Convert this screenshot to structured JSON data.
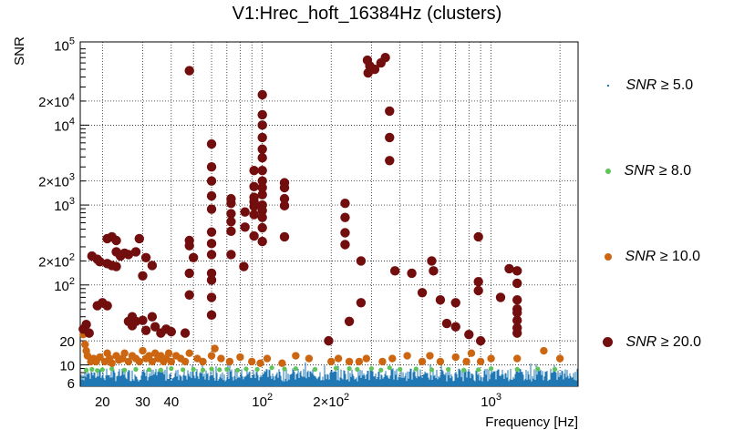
{
  "chart_data": {
    "type": "scatter",
    "title": "V1:Hrec_hoft_16384Hz (clusters)",
    "xlabel": "Frequency [Hz]",
    "ylabel": "SNR",
    "xscale": "log",
    "yscale": "log",
    "xlim": [
      16,
      2400
    ],
    "ylim": [
      5.4,
      110000
    ],
    "grid": true,
    "x_ticks": [
      {
        "value": 20,
        "label": "20"
      },
      {
        "value": 30,
        "label": "30"
      },
      {
        "value": 40,
        "label": "40"
      },
      {
        "value": 100,
        "label": "10²"
      },
      {
        "value": 200,
        "label": "2×10²"
      },
      {
        "value": 1000,
        "label": "10³"
      }
    ],
    "y_ticks": [
      {
        "value": 6,
        "label": "6"
      },
      {
        "value": 10,
        "label": "10"
      },
      {
        "value": 20,
        "label": "20"
      },
      {
        "value": 100,
        "label": "10²"
      },
      {
        "value": 200,
        "label": "2×10²"
      },
      {
        "value": 1000,
        "label": "10³"
      },
      {
        "value": 2000,
        "label": "2×10³"
      },
      {
        "value": 10000,
        "label": "10⁴"
      },
      {
        "value": 20000,
        "label": "2×10⁴"
      },
      {
        "value": 100000,
        "label": "10⁵"
      }
    ],
    "legend_position": "right",
    "series": [
      {
        "name": "SNR ≥ 5.0",
        "label": "SNR",
        "threshold": "≥ 5.0",
        "color": "#1f77b4",
        "marker": "point",
        "note": "dense band of low-SNR clusters across all frequencies (5–10)",
        "points": []
      },
      {
        "name": "SNR ≥ 8.0",
        "label": "SNR",
        "threshold": "≥ 8.0",
        "color": "#5ec45a",
        "marker": "small-circle",
        "points": [
          [
            17,
            8.6
          ],
          [
            18,
            8.8
          ],
          [
            19,
            8.5
          ],
          [
            20,
            8.7
          ],
          [
            22,
            8.9
          ],
          [
            25,
            8.6
          ],
          [
            28,
            8.8
          ],
          [
            32,
            8.7
          ],
          [
            36,
            8.6
          ],
          [
            40,
            9.0
          ],
          [
            45,
            8.7
          ],
          [
            50,
            8.8
          ],
          [
            55,
            8.6
          ],
          [
            60,
            8.9
          ],
          [
            65,
            8.7
          ],
          [
            70,
            8.8
          ],
          [
            78,
            8.6
          ],
          [
            85,
            8.9
          ],
          [
            95,
            8.8
          ],
          [
            110,
            9.2
          ],
          [
            125,
            8.9
          ],
          [
            140,
            9.0
          ],
          [
            170,
            8.8
          ],
          [
            210,
            9.1
          ],
          [
            240,
            9.0
          ],
          [
            260,
            8.8
          ],
          [
            300,
            9.0
          ],
          [
            330,
            8.6
          ],
          [
            360,
            9.2
          ],
          [
            400,
            8.8
          ],
          [
            470,
            8.9
          ],
          [
            550,
            8.7
          ],
          [
            650,
            8.8
          ],
          [
            760,
            8.6
          ],
          [
            880,
            8.7
          ],
          [
            1000,
            9.0
          ],
          [
            1300,
            8.8
          ],
          [
            1600,
            8.9
          ],
          [
            1900,
            8.8
          ]
        ]
      },
      {
        "name": "SNR ≥ 10.0",
        "label": "SNR",
        "threshold": "≥ 10.0",
        "color": "#cc6610",
        "marker": "circle",
        "points": [
          [
            16.5,
            24
          ],
          [
            16.8,
            18
          ],
          [
            17,
            15
          ],
          [
            17.2,
            13
          ],
          [
            17.8,
            11
          ],
          [
            18.3,
            12
          ],
          [
            18.8,
            11
          ],
          [
            19.5,
            12.5
          ],
          [
            20.5,
            11
          ],
          [
            21,
            14
          ],
          [
            21.5,
            12
          ],
          [
            22,
            10.5
          ],
          [
            23,
            13
          ],
          [
            23.6,
            11.5
          ],
          [
            24.5,
            12
          ],
          [
            25,
            14
          ],
          [
            26,
            11
          ],
          [
            27,
            13
          ],
          [
            28,
            12
          ],
          [
            29,
            11
          ],
          [
            30,
            15
          ],
          [
            31,
            12
          ],
          [
            32,
            13
          ],
          [
            33,
            11
          ],
          [
            34,
            14
          ],
          [
            35,
            12
          ],
          [
            36,
            13
          ],
          [
            37,
            11
          ],
          [
            38,
            12
          ],
          [
            39,
            14
          ],
          [
            40,
            11
          ],
          [
            42,
            13
          ],
          [
            44,
            12
          ],
          [
            46,
            11
          ],
          [
            48,
            14
          ],
          [
            52,
            12
          ],
          [
            55,
            11
          ],
          [
            60,
            13
          ],
          [
            62,
            16
          ],
          [
            66,
            12
          ],
          [
            72,
            11
          ],
          [
            80,
            12.5
          ],
          [
            90,
            11
          ],
          [
            98,
            10.5
          ],
          [
            105,
            12
          ],
          [
            122,
            10.5
          ],
          [
            140,
            13
          ],
          [
            160,
            12
          ],
          [
            200,
            11
          ],
          [
            215,
            12
          ],
          [
            240,
            11
          ],
          [
            265,
            11
          ],
          [
            285,
            12
          ],
          [
            335,
            11
          ],
          [
            370,
            12
          ],
          [
            430,
            13
          ],
          [
            500,
            11
          ],
          [
            540,
            13
          ],
          [
            600,
            11
          ],
          [
            700,
            12.5
          ],
          [
            780,
            11
          ],
          [
            820,
            14
          ],
          [
            900,
            11
          ],
          [
            1000,
            12
          ],
          [
            1300,
            12
          ],
          [
            1700,
            15
          ],
          [
            2000,
            12
          ]
        ]
      },
      {
        "name": "SNR ≥ 20.0",
        "label": "SNR",
        "threshold": "≥ 20.0",
        "color": "#720e0e",
        "marker": "large-circle",
        "points": [
          [
            16.5,
            28
          ],
          [
            17,
            32
          ],
          [
            17.5,
            25
          ],
          [
            18,
            230
          ],
          [
            19,
            210
          ],
          [
            19.5,
            195
          ],
          [
            19,
            55
          ],
          [
            20,
            60
          ],
          [
            21,
            55
          ],
          [
            21,
            185
          ],
          [
            22,
            175
          ],
          [
            23,
            260
          ],
          [
            23,
            170
          ],
          [
            25,
            250
          ],
          [
            21,
            380
          ],
          [
            22,
            400
          ],
          [
            23,
            360
          ],
          [
            24,
            230
          ],
          [
            26,
            240
          ],
          [
            28,
            260
          ],
          [
            27,
            40
          ],
          [
            27,
            31
          ],
          [
            26,
            35
          ],
          [
            28,
            35
          ],
          [
            30,
            36
          ],
          [
            31,
            27
          ],
          [
            33,
            40
          ],
          [
            34,
            30
          ],
          [
            36,
            25
          ],
          [
            38,
            28
          ],
          [
            29,
            380
          ],
          [
            31,
            220
          ],
          [
            30,
            130
          ],
          [
            33,
            175
          ],
          [
            40,
            26
          ],
          [
            48,
            48000
          ],
          [
            48,
            310
          ],
          [
            48,
            360
          ],
          [
            48,
            75
          ],
          [
            48,
            140
          ],
          [
            46,
            25
          ],
          [
            50,
            220
          ],
          [
            60,
            5800
          ],
          [
            60,
            3000
          ],
          [
            60,
            2000
          ],
          [
            60,
            1300
          ],
          [
            60,
            890
          ],
          [
            60,
            460
          ],
          [
            60,
            330
          ],
          [
            60,
            240
          ],
          [
            60,
            140
          ],
          [
            60,
            115
          ],
          [
            60,
            70
          ],
          [
            60,
            42
          ],
          [
            73,
            1200
          ],
          [
            73,
            1050
          ],
          [
            73,
            780
          ],
          [
            73,
            620
          ],
          [
            73,
            470
          ],
          [
            73,
            240
          ],
          [
            84,
            820
          ],
          [
            84,
            530
          ],
          [
            83,
            170
          ],
          [
            92,
            2700
          ],
          [
            92,
            1700
          ],
          [
            92,
            1250
          ],
          [
            92,
            1100
          ],
          [
            92,
            960
          ],
          [
            92,
            760
          ],
          [
            92,
            410
          ],
          [
            100,
            24000
          ],
          [
            100,
            13500
          ],
          [
            100,
            10000
          ],
          [
            100,
            7000
          ],
          [
            100,
            5000
          ],
          [
            100,
            3900
          ],
          [
            100,
            2700
          ],
          [
            100,
            2000
          ],
          [
            100,
            1650
          ],
          [
            100,
            1350
          ],
          [
            100,
            1000
          ],
          [
            100,
            850
          ],
          [
            100,
            700
          ],
          [
            100,
            520
          ],
          [
            100,
            350
          ],
          [
            125,
            1900
          ],
          [
            125,
            1650
          ],
          [
            125,
            1200
          ],
          [
            125,
            980
          ],
          [
            125,
            400
          ],
          [
            195,
            20
          ],
          [
            230,
            1050
          ],
          [
            230,
            700
          ],
          [
            230,
            450
          ],
          [
            230,
            320
          ],
          [
            240,
            35
          ],
          [
            270,
            200
          ],
          [
            270,
            60
          ],
          [
            288,
            65000
          ],
          [
            295,
            55000
          ],
          [
            290,
            45000
          ],
          [
            310,
            50000
          ],
          [
            330,
            60000
          ],
          [
            345,
            70000
          ],
          [
            360,
            15000
          ],
          [
            360,
            3600
          ],
          [
            360,
            7000
          ],
          [
            380,
            150
          ],
          [
            450,
            140
          ],
          [
            500,
            80
          ],
          [
            550,
            200
          ],
          [
            560,
            150
          ],
          [
            600,
            65
          ],
          [
            640,
            33
          ],
          [
            700,
            60
          ],
          [
            700,
            30
          ],
          [
            800,
            24
          ],
          [
            880,
            400
          ],
          [
            880,
            110
          ],
          [
            880,
            85
          ],
          [
            900,
            20
          ],
          [
            1100,
            70
          ],
          [
            1200,
            160
          ],
          [
            1300,
            150
          ],
          [
            1300,
            105
          ],
          [
            1300,
            65
          ],
          [
            1300,
            50
          ],
          [
            1300,
            45
          ],
          [
            1300,
            36
          ],
          [
            1300,
            29
          ],
          [
            1300,
            25
          ]
        ]
      }
    ]
  }
}
